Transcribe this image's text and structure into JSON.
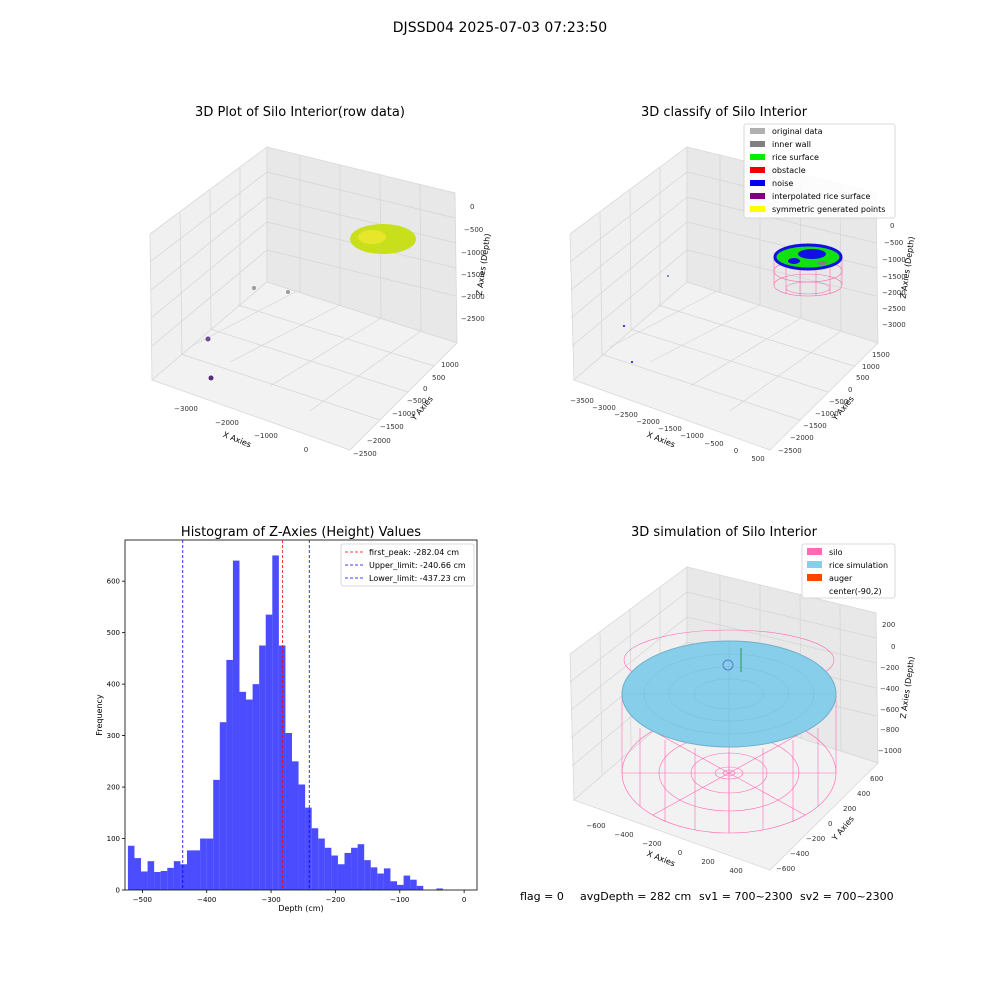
{
  "figure": {
    "suptitle": "DJSSD04 2025-07-03 07:23:50",
    "footer": {
      "flag": "flag = 0",
      "avg": "avgDepth = 282 cm",
      "sv1": "sv1 = 700~2300",
      "sv2": "sv2 = 700~2300"
    }
  },
  "panels": {
    "raw": {
      "title": "3D Plot of Silo Interior(row data)",
      "xlabel": "X Axies",
      "ylabel": "Y Axies",
      "zlabel": "Z Axies (Depth)",
      "xticks": [
        "−3000",
        "−2000",
        "−1000",
        "0"
      ],
      "yticks": [
        "1000",
        "500",
        "0",
        "−500",
        "−1000",
        "−1500",
        "−2000",
        "−2500"
      ],
      "zticks": [
        "0",
        "−500",
        "−1000",
        "−1500",
        "−2000",
        "−2500"
      ]
    },
    "classify": {
      "title": "3D classify of Silo Interior",
      "xlabel": "X Axies",
      "ylabel": "Y Axies",
      "zlabel": "Z Axies (Depth)",
      "xticks": [
        "−3500",
        "−3000",
        "−2500",
        "−2000",
        "−1500",
        "−1000",
        "−500",
        "0",
        "500"
      ],
      "yticks": [
        "1500",
        "1000",
        "500",
        "0",
        "−500",
        "−1000",
        "−1500",
        "−2000",
        "−2500"
      ],
      "zticks": [
        "0",
        "−500",
        "−1000",
        "−1500",
        "−2000",
        "−2500",
        "−3000"
      ],
      "legend": [
        {
          "label": "original data",
          "color": "#b0b0b0"
        },
        {
          "label": "inner wall",
          "color": "#808080"
        },
        {
          "label": "rice surface",
          "color": "#00ee00"
        },
        {
          "label": "obstacle",
          "color": "#ee0000"
        },
        {
          "label": "noise",
          "color": "#0000ee"
        },
        {
          "label": "interpolated rice surface",
          "color": "#800080"
        },
        {
          "label": "symmetric generated points",
          "color": "#ffff00"
        }
      ]
    },
    "simulation": {
      "title": "3D simulation of Silo Interior",
      "xlabel": "X Axies",
      "ylabel": "Y Axies",
      "zlabel": "Z Axies (Depth)",
      "xticks": [
        "−600",
        "−400",
        "−200",
        "0",
        "200",
        "400"
      ],
      "yticks": [
        "600",
        "400",
        "200",
        "0",
        "−200",
        "−400",
        "−600"
      ],
      "zticks": [
        "200",
        "0",
        "−200",
        "−400",
        "−600",
        "−800",
        "−1000"
      ],
      "legend": [
        {
          "label": "silo",
          "color": "#ff69b4"
        },
        {
          "label": "rice simulation",
          "color": "#87ceeb"
        },
        {
          "label": "auger",
          "color": "#ff4500"
        },
        {
          "label": "center(-90,2)",
          "color": ""
        }
      ]
    }
  },
  "chart_data": [
    {
      "type": "histogram",
      "title": "Histogram of Z-Axies (Height) Values",
      "xlabel": "Depth (cm)",
      "ylabel": "Frequency",
      "xlim": [
        -527,
        20
      ],
      "ylim": [
        0,
        680
      ],
      "xticks": [
        -500,
        -400,
        -300,
        -200,
        -100,
        0
      ],
      "yticks": [
        0,
        100,
        200,
        300,
        400,
        500,
        600
      ],
      "bin_start": -522.5,
      "bin_width": 10.2,
      "counts": [
        86,
        62,
        36,
        56,
        35,
        37,
        43,
        56,
        50,
        77,
        77,
        100,
        100,
        214,
        326,
        447,
        640,
        385,
        370,
        400,
        475,
        535,
        650,
        475,
        305,
        250,
        205,
        160,
        120,
        100,
        82,
        67,
        50,
        72,
        82,
        89,
        58,
        44,
        32,
        42,
        17,
        10,
        28,
        20,
        8,
        0,
        0,
        3,
        0,
        0,
        0,
        0
      ],
      "color": "#0000ff",
      "vlines": [
        {
          "label": "first_peak: -282.04 cm",
          "x": -282.04,
          "color": "#ff0000"
        },
        {
          "label": "Upper_limit: -240.66 cm",
          "x": -240.66,
          "color": "#0000ff"
        },
        {
          "label": "Lower_limit: -437.23 cm",
          "x": -437.23,
          "color": "#0000ff"
        }
      ]
    }
  ]
}
